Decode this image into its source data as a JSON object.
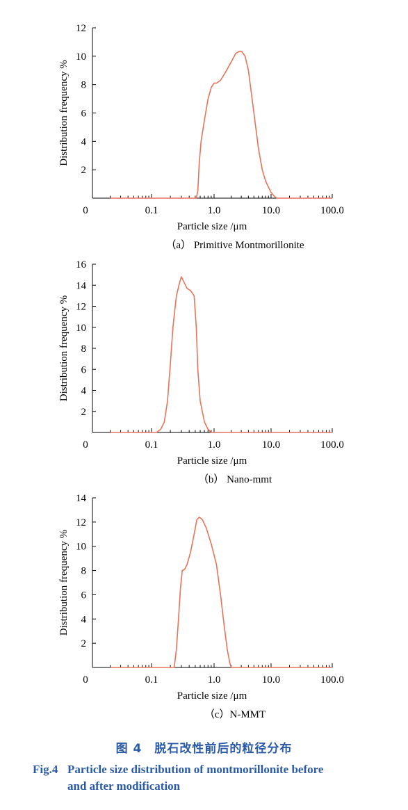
{
  "chart_data": [
    {
      "type": "line",
      "xscale": "log",
      "xlim": [
        0.01,
        100
      ],
      "ylim": [
        0,
        12
      ],
      "yticks": [
        2,
        4,
        6,
        8,
        10,
        12
      ],
      "xtick_labels": [
        "0",
        "0.1",
        "1.0",
        "10.0",
        "100.0"
      ],
      "xlabel": "Particle size /μm",
      "ylabel": "Distribution frequency %",
      "subcaption": "（a） Primitive Montmorillonite",
      "line_color": "#e8735a",
      "series": [
        {
          "x": [
            0.02,
            0.52,
            0.55,
            0.58,
            0.62,
            0.7,
            0.8,
            0.9,
            1.0,
            1.1,
            1.3,
            1.6,
            2.0,
            2.4,
            2.8,
            3.1,
            3.5,
            4.0,
            5.0,
            6.0,
            7.0,
            8.0,
            10.0,
            11.5,
            12.5,
            13.0,
            20.0,
            100.0
          ],
          "y": [
            0,
            0,
            0.5,
            2.5,
            4.0,
            5.5,
            7.0,
            7.8,
            8.1,
            8.1,
            8.3,
            8.9,
            9.6,
            10.2,
            10.35,
            10.3,
            10.0,
            9.0,
            6.0,
            3.5,
            2.0,
            1.2,
            0.4,
            0.1,
            0,
            0,
            0,
            0
          ]
        }
      ]
    },
    {
      "type": "line",
      "xscale": "log",
      "xlim": [
        0.01,
        100
      ],
      "ylim": [
        0,
        16
      ],
      "yticks": [
        2,
        4,
        6,
        8,
        10,
        12,
        14,
        16
      ],
      "xtick_labels": [
        "0",
        "0.1",
        "1.0",
        "10.0",
        "100.0"
      ],
      "xlabel": "Particle size /μm",
      "ylabel": "Distribution frequency %",
      "subcaption": "（b） Nano-mmt",
      "line_color": "#e8735a",
      "series": [
        {
          "x": [
            0.02,
            0.12,
            0.14,
            0.16,
            0.18,
            0.2,
            0.22,
            0.25,
            0.28,
            0.3,
            0.33,
            0.37,
            0.42,
            0.48,
            0.52,
            0.55,
            0.6,
            0.7,
            0.8,
            0.9,
            1.0,
            100.0
          ],
          "y": [
            0,
            0,
            0.3,
            1.0,
            3.0,
            6.5,
            10.0,
            13.0,
            14.2,
            14.8,
            14.3,
            13.7,
            13.5,
            13.0,
            10.0,
            6.0,
            3.0,
            1.0,
            0.3,
            0,
            0,
            0
          ]
        }
      ]
    },
    {
      "type": "line",
      "xscale": "log",
      "xlim": [
        0.01,
        100
      ],
      "ylim": [
        0,
        14
      ],
      "yticks": [
        2,
        4,
        6,
        8,
        10,
        12,
        14
      ],
      "xtick_labels": [
        "0",
        "0.1",
        "1.0",
        "10.0",
        "100.0"
      ],
      "xlabel": "Particle size /μm",
      "ylabel": "Distribution frequency %",
      "subcaption": "（c）N-MMT",
      "line_color": "#e8735a",
      "series": [
        {
          "x": [
            0.02,
            0.23,
            0.25,
            0.27,
            0.29,
            0.31,
            0.34,
            0.37,
            0.42,
            0.48,
            0.53,
            0.58,
            0.65,
            0.75,
            0.9,
            1.1,
            1.3,
            1.5,
            1.7,
            1.9,
            2.0,
            100.0
          ],
          "y": [
            0,
            0,
            1.5,
            4.0,
            6.5,
            8.0,
            8.1,
            8.5,
            9.5,
            11.0,
            12.2,
            12.4,
            12.2,
            11.5,
            10.2,
            8.5,
            6.0,
            3.5,
            1.5,
            0.3,
            0,
            0
          ]
        }
      ]
    }
  ],
  "caption": {
    "cn": "图 4　脱石改性前后的粒径分布",
    "en_label": "Fig.4",
    "en_line1": "Particle size distribution of montmorillonite before",
    "en_line2": "and after modification"
  }
}
